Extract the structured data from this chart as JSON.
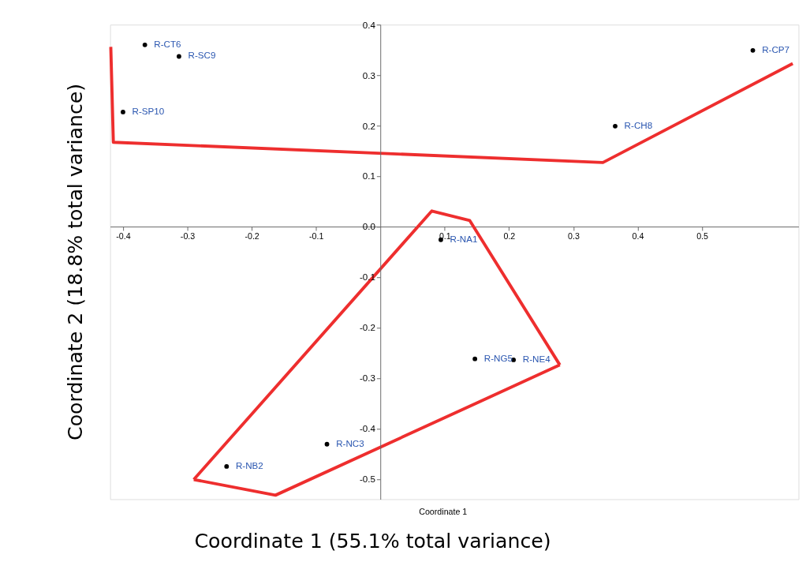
{
  "chart_data": {
    "type": "scatter",
    "xlabel": "Coordinate 1 (55.1% total variance)",
    "ylabel": "Coordinate 2 (18.8% total variance)",
    "annotations": [
      "Coordinate 1"
    ],
    "xlim": [
      -0.42,
      0.65
    ],
    "ylim": [
      -0.54,
      0.4
    ],
    "xticks": [
      -0.4,
      -0.3,
      -0.2,
      -0.1,
      0.1,
      0.2,
      0.3,
      0.4,
      0.5
    ],
    "yticks": [
      {
        "value": 0.4,
        "label": "0.4"
      },
      {
        "value": 0.3,
        "label": "0.3"
      },
      {
        "value": 0.2,
        "label": "0.2"
      },
      {
        "value": 0.1,
        "label": "0.1"
      },
      {
        "value": 0,
        "label": "0.0"
      },
      -0.1,
      -0.2,
      -0.3,
      -0.4,
      -0.5
    ],
    "grid": false,
    "marker": "circle",
    "series": [
      {
        "color": "#000000",
        "x": [
          -0.366,
          -0.313,
          -0.4,
          0.579,
          0.365,
          0.094,
          0.147,
          0.207,
          -0.083,
          -0.239
        ],
        "values": [
          0.36,
          0.337,
          0.227,
          0.349,
          0.199,
          -0.026,
          -0.262,
          -0.264,
          -0.431,
          -0.475
        ],
        "value_labels": [
          "R-CT6",
          "R-SC9",
          "R-SP10",
          "R-CP7",
          "R-CH8",
          "R-NA1",
          "R-NG5",
          "R-NE4",
          "R-NC3",
          "R-NB2"
        ]
      },
      {
        "type": "line",
        "marker": "none",
        "color": "#ee2e2e",
        "x": [
          -0.419,
          -0.415,
          0.346,
          0.641
        ],
        "values": [
          0.356,
          0.167,
          0.127,
          0.323
        ]
      },
      {
        "type": "line",
        "marker": "none",
        "color": "#ee2e2e",
        "x": [
          -0.29,
          0.08,
          0.139,
          0.279
        ],
        "values": [
          -0.501,
          0.031,
          0.012,
          -0.274
        ]
      },
      {
        "type": "line",
        "marker": "none",
        "color": "#ee2e2e",
        "x": [
          -0.29,
          -0.163,
          0.279
        ],
        "values": [
          -0.501,
          -0.532,
          -0.274
        ]
      }
    ]
  }
}
